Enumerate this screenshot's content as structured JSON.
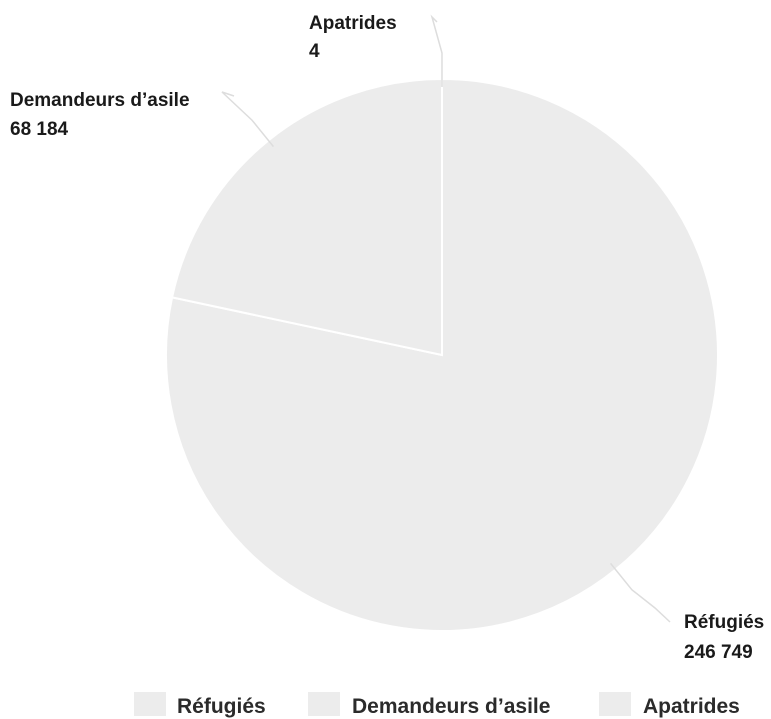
{
  "chart_data": {
    "type": "pie",
    "title": "",
    "start_angle_deg": 0,
    "direction": "clockwise",
    "slices": [
      {
        "name": "Réfugiés",
        "value": 246749,
        "value_label": "246 749",
        "color": "#ececec"
      },
      {
        "name": "Demandeurs d’asile",
        "value": 68184,
        "value_label": "68 184",
        "color": "#ececec"
      },
      {
        "name": "Apatrides",
        "value": 4,
        "value_label": "4",
        "color": "#ececec"
      }
    ],
    "legend": {
      "placement": "bottom",
      "items": [
        "Réfugiés",
        "Demandeurs d’asile",
        "Apatrides"
      ]
    },
    "slice_border_color": "#ffffff",
    "leader_line_color": "#dddddd",
    "label_color": "#1a1a1a"
  }
}
